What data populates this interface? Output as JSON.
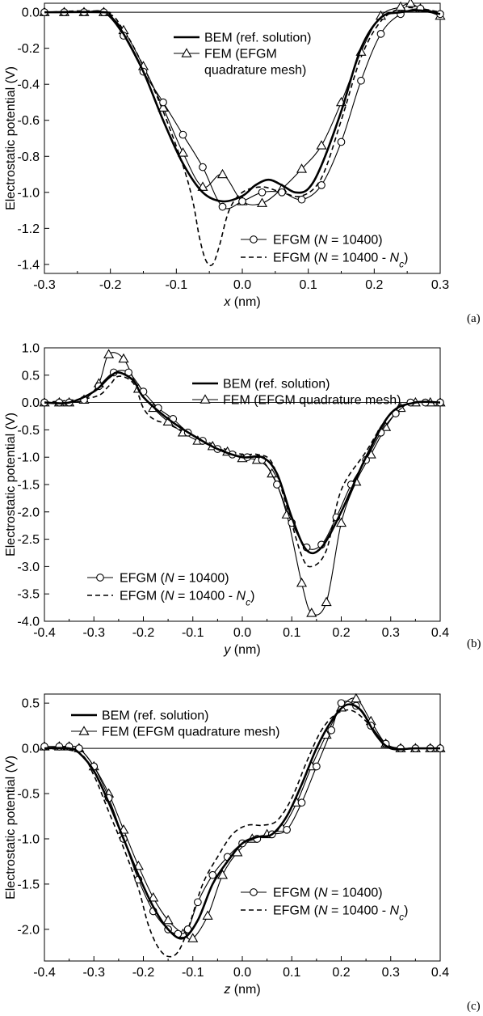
{
  "chart_data": [
    {
      "panel": "(a)",
      "type": "line",
      "ylabel": "Electrostatic potential (V)",
      "xlabel_var": "x",
      "xlabel_unit": " (nm)",
      "xlim": [
        -0.3,
        0.3
      ],
      "ylim": [
        -1.45,
        0.05
      ],
      "x_ticks": [
        "-0.3",
        "-0.2",
        "-0.1",
        "0.0",
        "0.1",
        "0.2",
        "0.3"
      ],
      "y_ticks": [
        "0.0",
        "-0.2",
        "-0.4",
        "-0.6",
        "-0.8",
        "-1.0",
        "-1.2",
        "-1.4"
      ],
      "legend_top": [
        {
          "key": "bem",
          "text": "BEM (ref. solution)"
        },
        {
          "key": "fem",
          "text": "FEM (EFGM",
          "text2": "quadrature mesh)"
        }
      ],
      "legend_bottom": [
        {
          "key": "efgm",
          "pre": "EFGM (",
          "var": "N",
          "post": " = 10400)"
        },
        {
          "key": "efgmc",
          "pre": "EFGM (",
          "var": "N",
          "mid": " = 10400 - ",
          "var2": "N",
          "sub": "c",
          "post": ")"
        }
      ],
      "series": {
        "bem": {
          "x": [
            -0.3,
            -0.21,
            -0.2,
            -0.18,
            -0.15,
            -0.12,
            -0.09,
            -0.06,
            -0.03,
            0.0,
            0.02,
            0.04,
            0.06,
            0.08,
            0.1,
            0.12,
            0.15,
            0.18,
            0.21,
            0.24,
            0.27,
            0.3
          ],
          "y": [
            0.0,
            0.0,
            -0.02,
            -0.12,
            -0.33,
            -0.6,
            -0.84,
            -1.0,
            -1.05,
            -1.02,
            -0.96,
            -0.93,
            -0.96,
            -1.0,
            -0.98,
            -0.85,
            -0.55,
            -0.2,
            -0.03,
            0.0,
            0.01,
            -0.01
          ]
        },
        "fem": {
          "x": [
            -0.3,
            -0.27,
            -0.24,
            -0.21,
            -0.18,
            -0.15,
            -0.12,
            -0.09,
            -0.06,
            -0.03,
            0.0,
            0.03,
            0.06,
            0.09,
            0.12,
            0.15,
            0.18,
            0.21,
            0.24,
            0.255,
            0.27,
            0.3
          ],
          "y": [
            0.0,
            0.0,
            0.0,
            0.0,
            -0.1,
            -0.3,
            -0.53,
            -0.78,
            -0.97,
            -0.9,
            -1.05,
            -1.06,
            -0.98,
            -0.87,
            -0.74,
            -0.5,
            -0.22,
            -0.02,
            0.03,
            0.05,
            0.02,
            -0.02
          ]
        },
        "efgm": {
          "x": [
            -0.3,
            -0.27,
            -0.24,
            -0.21,
            -0.18,
            -0.15,
            -0.12,
            -0.09,
            -0.06,
            -0.03,
            0.0,
            0.03,
            0.06,
            0.09,
            0.12,
            0.15,
            0.18,
            0.21,
            0.24,
            0.27,
            0.3
          ],
          "y": [
            0.0,
            0.0,
            0.0,
            0.0,
            -0.13,
            -0.33,
            -0.5,
            -0.68,
            -0.86,
            -1.08,
            -1.05,
            -1.0,
            -1.0,
            -1.04,
            -0.96,
            -0.72,
            -0.38,
            -0.12,
            -0.01,
            0.02,
            -0.01
          ]
        },
        "efgmc": {
          "x": [
            -0.3,
            -0.21,
            -0.18,
            -0.15,
            -0.12,
            -0.09,
            -0.075,
            -0.065,
            -0.055,
            -0.045,
            -0.035,
            -0.02,
            0.0,
            0.03,
            0.06,
            0.09,
            0.12,
            0.15,
            0.18,
            0.21,
            0.24,
            0.27,
            0.3
          ],
          "y": [
            0.0,
            0.0,
            -0.1,
            -0.3,
            -0.55,
            -0.85,
            -1.05,
            -1.25,
            -1.38,
            -1.4,
            -1.3,
            -1.1,
            -1.0,
            -0.97,
            -1.0,
            -1.02,
            -0.92,
            -0.6,
            -0.25,
            -0.05,
            0.02,
            0.02,
            0.0
          ]
        }
      }
    },
    {
      "panel": "(b)",
      "type": "line",
      "ylabel": "Electrostatic potential (V)",
      "xlabel_var": "y",
      "xlabel_unit": " (nm)",
      "xlim": [
        -0.4,
        0.4
      ],
      "ylim": [
        -4.0,
        1.0
      ],
      "x_ticks": [
        "-0.4",
        "-0.3",
        "-0.2",
        "-0.1",
        "0.0",
        "0.1",
        "0.2",
        "0.3",
        "0.4"
      ],
      "y_ticks": [
        "1.0",
        "0.5",
        "0.0",
        "-0.5",
        "-1.0",
        "-1.5",
        "-2.0",
        "-2.5",
        "-3.0",
        "-3.5",
        "-4.0"
      ],
      "legend_top": [
        {
          "key": "bem",
          "text": "BEM (ref. solution)"
        },
        {
          "key": "fem",
          "text": "FEM (EFGM quadrature mesh)"
        }
      ],
      "legend_bottom": [
        {
          "key": "efgm",
          "pre": "EFGM (",
          "var": "N",
          "post": " = 10400)"
        },
        {
          "key": "efgmc",
          "pre": "EFGM (",
          "var": "N",
          "mid": " = 10400 - ",
          "var2": "N",
          "sub": "c",
          "post": ")"
        }
      ],
      "series": {
        "bem": {
          "x": [
            -0.4,
            -0.35,
            -0.3,
            -0.27,
            -0.25,
            -0.22,
            -0.2,
            -0.15,
            -0.1,
            -0.05,
            0.0,
            0.04,
            0.07,
            0.1,
            0.13,
            0.16,
            0.2,
            0.25,
            0.3,
            0.35,
            0.4
          ],
          "y": [
            0.0,
            0.0,
            0.2,
            0.45,
            0.55,
            0.4,
            0.1,
            -0.3,
            -0.6,
            -0.85,
            -1.0,
            -1.0,
            -1.3,
            -2.1,
            -2.7,
            -2.65,
            -2.0,
            -1.0,
            -0.2,
            0.0,
            0.0
          ]
        },
        "fem": {
          "x": [
            -0.4,
            -0.37,
            -0.35,
            -0.32,
            -0.29,
            -0.27,
            -0.24,
            -0.21,
            -0.18,
            -0.15,
            -0.12,
            -0.09,
            -0.06,
            -0.03,
            0.0,
            0.03,
            0.06,
            0.09,
            0.12,
            0.14,
            0.17,
            0.2,
            0.23,
            0.26,
            0.29,
            0.32,
            0.35,
            0.38,
            0.4
          ],
          "y": [
            0.0,
            0.0,
            0.0,
            0.05,
            0.35,
            0.88,
            0.8,
            0.25,
            -0.1,
            -0.35,
            -0.55,
            -0.7,
            -0.8,
            -0.9,
            -1.02,
            -1.05,
            -1.3,
            -2.05,
            -3.3,
            -3.85,
            -3.65,
            -2.2,
            -1.45,
            -0.95,
            -0.45,
            -0.1,
            0.0,
            0.0,
            0.0
          ]
        },
        "efgm": {
          "x": [
            -0.4,
            -0.37,
            -0.35,
            -0.32,
            -0.29,
            -0.26,
            -0.23,
            -0.2,
            -0.17,
            -0.14,
            -0.11,
            -0.08,
            -0.05,
            -0.02,
            0.01,
            0.04,
            0.07,
            0.1,
            0.13,
            0.16,
            0.19,
            0.22,
            0.25,
            0.28,
            0.31,
            0.34,
            0.37,
            0.4
          ],
          "y": [
            0.0,
            0.0,
            0.0,
            0.05,
            0.3,
            0.55,
            0.55,
            0.2,
            -0.1,
            -0.3,
            -0.55,
            -0.7,
            -0.85,
            -0.95,
            -1.0,
            -1.05,
            -1.5,
            -2.2,
            -2.65,
            -2.6,
            -2.1,
            -1.5,
            -1.05,
            -0.55,
            -0.2,
            0.0,
            0.0,
            0.0
          ]
        },
        "efgmc": {
          "x": [
            -0.4,
            -0.3,
            -0.27,
            -0.25,
            -0.22,
            -0.2,
            -0.18,
            -0.15,
            -0.1,
            -0.05,
            0.0,
            0.03,
            0.06,
            0.09,
            0.12,
            0.14,
            0.17,
            0.2,
            0.25,
            0.3,
            0.35,
            0.4
          ],
          "y": [
            0.0,
            0.1,
            0.3,
            0.48,
            0.35,
            -0.1,
            -0.3,
            -0.4,
            -0.6,
            -0.8,
            -0.95,
            -0.95,
            -1.1,
            -1.9,
            -2.8,
            -3.0,
            -2.7,
            -1.6,
            -0.9,
            -0.2,
            0.0,
            0.0
          ]
        }
      }
    },
    {
      "panel": "(c)",
      "type": "line",
      "ylabel": "Electrostatic potential (V)",
      "xlabel_var": "z",
      "xlabel_unit": " (nm)",
      "xlim": [
        -0.4,
        0.4
      ],
      "ylim": [
        -2.35,
        0.6
      ],
      "x_ticks": [
        "-0.4",
        "-0.3",
        "-0.2",
        "-0.1",
        "0.0",
        "0.1",
        "0.2",
        "0.3",
        "0.4"
      ],
      "y_ticks": [
        "0.5",
        "0.0",
        "-0.5",
        "-1.0",
        "-1.5",
        "-2.0"
      ],
      "legend_top": [
        {
          "key": "bem",
          "text": "BEM (ref. solution)"
        },
        {
          "key": "fem",
          "text": "FEM (EFGM quadrature mesh)"
        }
      ],
      "legend_bottom": [
        {
          "key": "efgm",
          "pre": "EFGM (",
          "var": "N",
          "post": " = 10400)"
        },
        {
          "key": "efgmc",
          "pre": "EFGM (",
          "var": "N",
          "mid": " = 10400 - ",
          "var2": "N",
          "sub": "c",
          "post": ")"
        }
      ],
      "series": {
        "bem": {
          "x": [
            -0.4,
            -0.35,
            -0.33,
            -0.3,
            -0.27,
            -0.24,
            -0.21,
            -0.18,
            -0.15,
            -0.12,
            -0.09,
            -0.06,
            -0.03,
            0.0,
            0.03,
            0.06,
            0.09,
            0.12,
            0.15,
            0.18,
            0.21,
            0.24,
            0.27,
            0.3,
            0.35,
            0.4
          ],
          "y": [
            0.0,
            0.0,
            -0.05,
            -0.25,
            -0.6,
            -1.0,
            -1.4,
            -1.75,
            -2.0,
            -2.1,
            -1.9,
            -1.5,
            -1.25,
            -1.05,
            -0.98,
            -0.95,
            -0.75,
            -0.4,
            0.0,
            0.3,
            0.48,
            0.42,
            0.15,
            0.0,
            0.0,
            0.0
          ]
        },
        "fem": {
          "x": [
            -0.4,
            -0.37,
            -0.35,
            -0.33,
            -0.3,
            -0.27,
            -0.24,
            -0.21,
            -0.18,
            -0.15,
            -0.12,
            -0.1,
            -0.07,
            -0.04,
            -0.01,
            0.02,
            0.05,
            0.08,
            0.11,
            0.14,
            0.17,
            0.2,
            0.23,
            0.26,
            0.29,
            0.32,
            0.35,
            0.38,
            0.4
          ],
          "y": [
            0.02,
            0.02,
            0.02,
            0.0,
            -0.2,
            -0.5,
            -0.9,
            -1.3,
            -1.65,
            -1.9,
            -2.05,
            -2.1,
            -1.85,
            -1.4,
            -1.15,
            -1.0,
            -0.95,
            -0.88,
            -0.6,
            -0.2,
            0.15,
            0.45,
            0.55,
            0.3,
            0.05,
            0.0,
            0.0,
            0.0,
            0.0
          ]
        },
        "efgm": {
          "x": [
            -0.4,
            -0.37,
            -0.35,
            -0.33,
            -0.3,
            -0.27,
            -0.24,
            -0.21,
            -0.18,
            -0.15,
            -0.13,
            -0.11,
            -0.09,
            -0.06,
            -0.03,
            0.0,
            0.03,
            0.06,
            0.09,
            0.12,
            0.15,
            0.18,
            0.2,
            0.23,
            0.26,
            0.29,
            0.32,
            0.35,
            0.38,
            0.4
          ],
          "y": [
            0.02,
            0.02,
            0.02,
            0.0,
            -0.2,
            -0.55,
            -1.0,
            -1.45,
            -1.8,
            -2.0,
            -2.05,
            -2.0,
            -1.7,
            -1.4,
            -1.2,
            -1.05,
            -1.0,
            -0.95,
            -0.9,
            -0.6,
            -0.2,
            0.2,
            0.5,
            0.47,
            0.25,
            0.05,
            0.0,
            0.0,
            0.0,
            0.0
          ]
        },
        "efgmc": {
          "x": [
            -0.4,
            -0.33,
            -0.3,
            -0.27,
            -0.24,
            -0.21,
            -0.19,
            -0.17,
            -0.15,
            -0.13,
            -0.11,
            -0.08,
            -0.05,
            -0.02,
            0.01,
            0.04,
            0.07,
            0.1,
            0.13,
            0.16,
            0.19,
            0.22,
            0.25,
            0.28,
            0.31,
            0.35,
            0.4
          ],
          "y": [
            0.0,
            -0.05,
            -0.3,
            -0.7,
            -1.1,
            -1.55,
            -1.95,
            -2.2,
            -2.3,
            -2.25,
            -2.0,
            -1.5,
            -1.2,
            -0.95,
            -0.85,
            -0.85,
            -0.8,
            -0.55,
            -0.15,
            0.2,
            0.38,
            0.42,
            0.3,
            0.08,
            0.0,
            0.0,
            0.0
          ]
        }
      }
    }
  ]
}
